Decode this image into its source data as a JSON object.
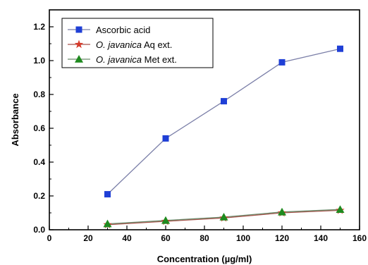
{
  "chart_data": {
    "type": "line",
    "xlabel": "Concentration (µg/ml)",
    "ylabel": "Absorbance",
    "xlim": [
      0,
      160
    ],
    "ylim": [
      0,
      1.3
    ],
    "xticks": [
      "0",
      "20",
      "40",
      "60",
      "80",
      "100",
      "120",
      "140",
      "160"
    ],
    "yticks": [
      "0.0",
      "0.2",
      "0.4",
      "0.6",
      "0.8",
      "1.0",
      "1.2"
    ],
    "x": [
      30,
      60,
      90,
      120,
      150
    ],
    "legend_position": "top-left",
    "series": [
      {
        "name": "Ascorbic acid",
        "name_parts": [
          {
            "text": "Ascorbic acid",
            "italic": false
          }
        ],
        "marker": "square",
        "color": "#1f3fd6",
        "line_color": "#7b7fa8",
        "values": [
          0.21,
          0.54,
          0.76,
          0.99,
          1.07
        ]
      },
      {
        "name": "O. javanica Aq ext.",
        "name_parts": [
          {
            "text": "O. javanica",
            "italic": true
          },
          {
            "text": " Aq ext.",
            "italic": false
          }
        ],
        "marker": "star",
        "color": "#d63a2a",
        "line_color": "#a8524a",
        "values": [
          0.03,
          0.05,
          0.07,
          0.1,
          0.115
        ]
      },
      {
        "name": "O. javanica Met ext.",
        "name_parts": [
          {
            "text": "O. javanica",
            "italic": true
          },
          {
            "text": "  Met ext.",
            "italic": false
          }
        ],
        "marker": "triangle",
        "color": "#1f8a1f",
        "line_color": "#6b8a6b",
        "values": [
          0.035,
          0.055,
          0.075,
          0.105,
          0.12
        ]
      }
    ]
  }
}
